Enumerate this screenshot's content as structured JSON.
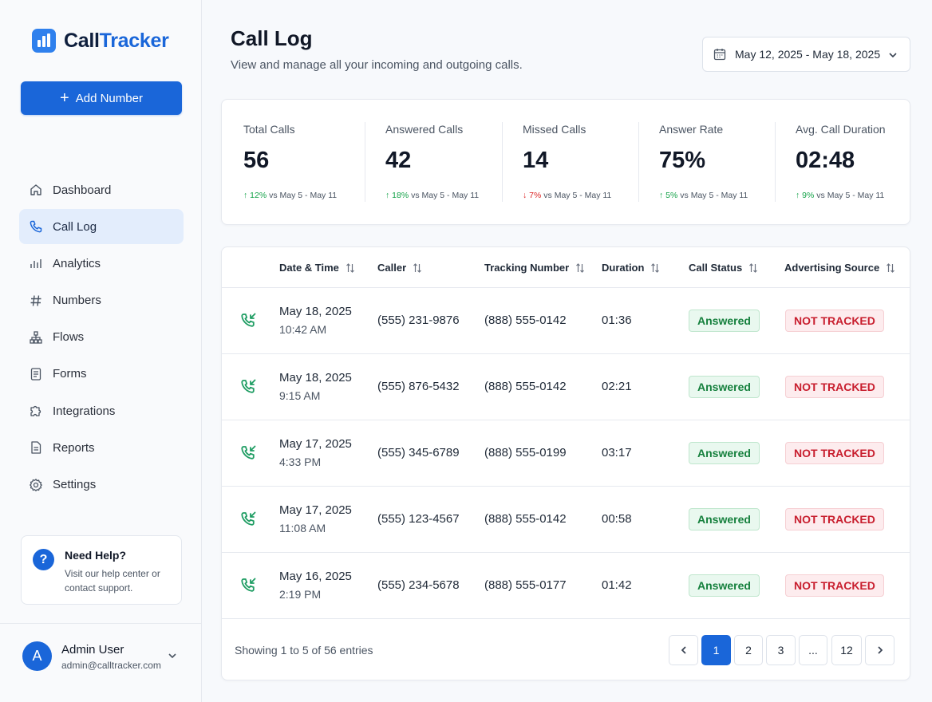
{
  "brand": {
    "name_part1": "Call",
    "name_part2": "Tracker"
  },
  "sidebar": {
    "add_button": "Add Number",
    "items": [
      {
        "label": "Dashboard",
        "icon": "home-icon",
        "active": false
      },
      {
        "label": "Call Log",
        "icon": "phone-icon",
        "active": true
      },
      {
        "label": "Analytics",
        "icon": "bar-chart-icon",
        "active": false
      },
      {
        "label": "Numbers",
        "icon": "hash-icon",
        "active": false
      },
      {
        "label": "Flows",
        "icon": "sitemap-icon",
        "active": false
      },
      {
        "label": "Forms",
        "icon": "form-icon",
        "active": false
      },
      {
        "label": "Integrations",
        "icon": "puzzle-icon",
        "active": false
      },
      {
        "label": "Reports",
        "icon": "report-icon",
        "active": false
      },
      {
        "label": "Settings",
        "icon": "gear-icon",
        "active": false
      }
    ],
    "help": {
      "title": "Need Help?",
      "text": "Visit our help center or contact support.",
      "icon_text": "?"
    },
    "user": {
      "initial": "A",
      "name": "Admin User",
      "email": "admin@calltracker.com"
    }
  },
  "header": {
    "title": "Call Log",
    "subtitle": "View and manage all your incoming and outgoing calls.",
    "date_range": "May 12, 2025 - May 18, 2025"
  },
  "stats": [
    {
      "label": "Total Calls",
      "value": "56",
      "delta": "12%",
      "direction": "up",
      "compare": "vs May 5 - May 11"
    },
    {
      "label": "Answered Calls",
      "value": "42",
      "delta": "18%",
      "direction": "up",
      "compare": "vs May 5 - May 11"
    },
    {
      "label": "Missed Calls",
      "value": "14",
      "delta": "7%",
      "direction": "down",
      "compare": "vs May 5 - May 11"
    },
    {
      "label": "Answer Rate",
      "value": "75%",
      "delta": "5%",
      "direction": "up",
      "compare": "vs May 5 - May 11"
    },
    {
      "label": "Avg. Call Duration",
      "value": "02:48",
      "delta": "9%",
      "direction": "up",
      "compare": "vs May 5 - May 11"
    }
  ],
  "table": {
    "columns": [
      "Date & Time",
      "Caller",
      "Tracking Number",
      "Duration",
      "Call Status",
      "Advertising Source"
    ],
    "rows": [
      {
        "date": "May 18, 2025",
        "time": "10:42 AM",
        "caller": "(555) 231-9876",
        "tracking": "(888) 555-0142",
        "duration": "01:36",
        "status": "Answered",
        "source": "NOT TRACKED"
      },
      {
        "date": "May 18, 2025",
        "time": "9:15 AM",
        "caller": "(555) 876-5432",
        "tracking": "(888) 555-0142",
        "duration": "02:21",
        "status": "Answered",
        "source": "NOT TRACKED"
      },
      {
        "date": "May 17, 2025",
        "time": "4:33 PM",
        "caller": "(555) 345-6789",
        "tracking": "(888) 555-0199",
        "duration": "03:17",
        "status": "Answered",
        "source": "NOT TRACKED"
      },
      {
        "date": "May 17, 2025",
        "time": "11:08 AM",
        "caller": "(555) 123-4567",
        "tracking": "(888) 555-0142",
        "duration": "00:58",
        "status": "Answered",
        "source": "NOT TRACKED"
      },
      {
        "date": "May 16, 2025",
        "time": "2:19 PM",
        "caller": "(555) 234-5678",
        "tracking": "(888) 555-0177",
        "duration": "01:42",
        "status": "Answered",
        "source": "NOT TRACKED"
      }
    ],
    "showing": "Showing 1 to 5 of 56 entries",
    "pagination": [
      "1",
      "2",
      "3",
      "...",
      "12"
    ],
    "current_page": "1"
  },
  "colors": {
    "primary": "#1a66d9",
    "success": "#16a34a",
    "danger": "#dc2626",
    "active_nav_bg": "#e3edfc"
  }
}
